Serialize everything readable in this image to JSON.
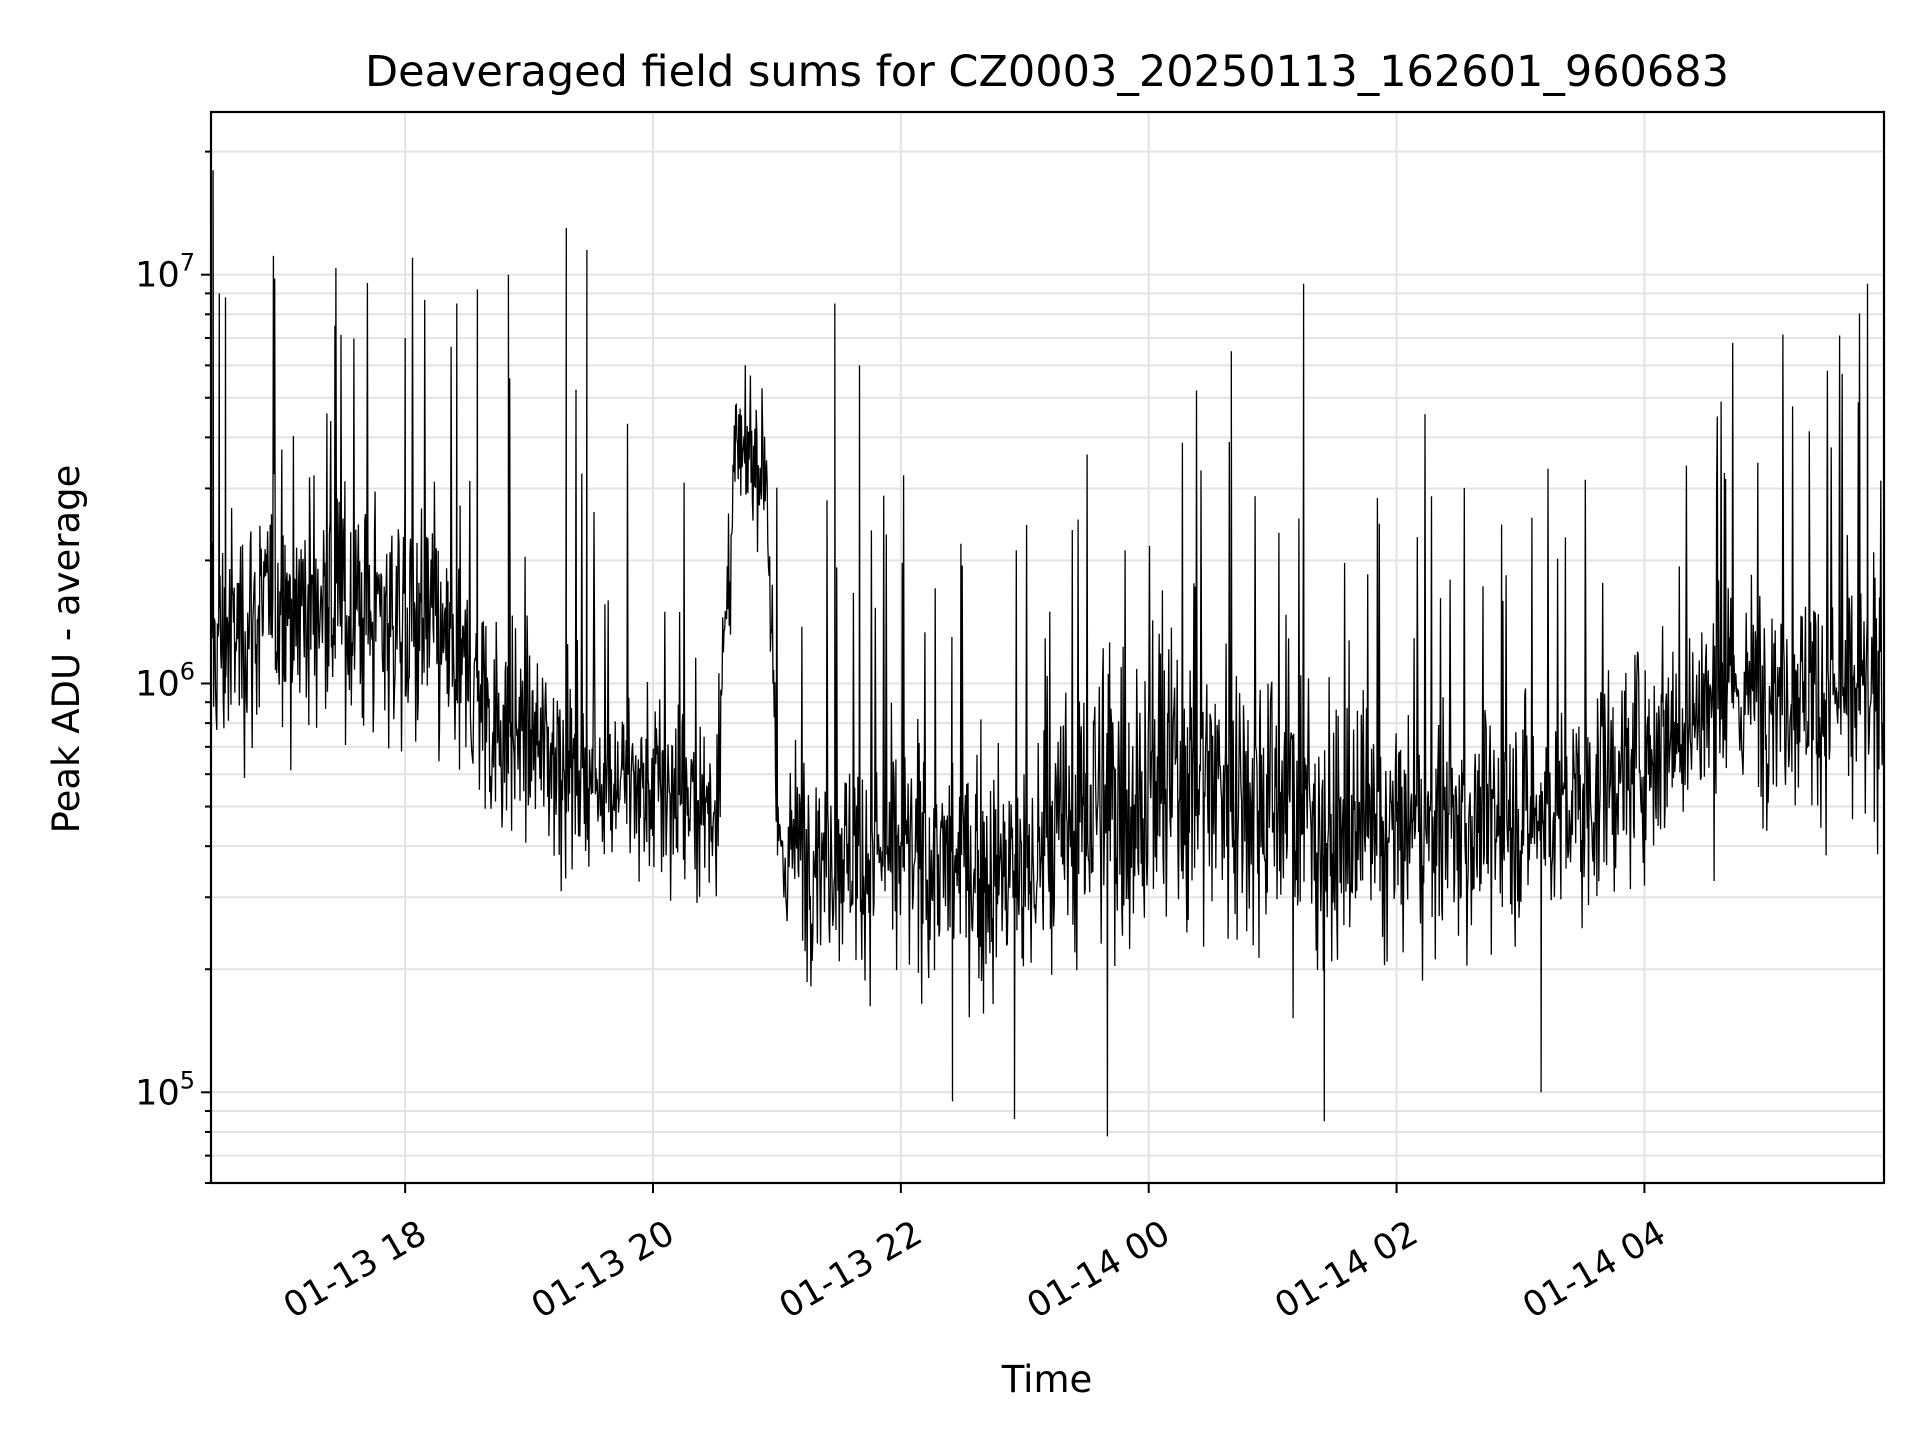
{
  "chart_data": {
    "type": "line",
    "title": "Deaveraged field sums for CZ0003_20250113_162601_960683",
    "xlabel": "Time",
    "ylabel": "Peak ADU - average",
    "x_start": "2025-01-13 16:26",
    "x_end": "2025-01-14 05:56",
    "xlim": [
      "2025-01-13 16:26",
      "2025-01-14 05:56"
    ],
    "ylim": [
      60000,
      25000000
    ],
    "yscale": "log",
    "grid": true,
    "x_ticks": [
      {
        "time": "2025-01-13 18:00",
        "label": "01-13 18"
      },
      {
        "time": "2025-01-13 20:00",
        "label": "01-13 20"
      },
      {
        "time": "2025-01-13 22:00",
        "label": "01-13 22"
      },
      {
        "time": "2025-01-14 00:00",
        "label": "01-14 00"
      },
      {
        "time": "2025-01-14 02:00",
        "label": "01-14 02"
      },
      {
        "time": "2025-01-14 04:00",
        "label": "01-14 04"
      }
    ],
    "y_ticks": [
      {
        "value": 100000,
        "base": "10",
        "exp": "5"
      },
      {
        "value": 1000000,
        "base": "10",
        "exp": "6"
      },
      {
        "value": 10000000,
        "base": "10",
        "exp": "7"
      }
    ],
    "series": [
      {
        "color": "#000000",
        "level_profile": [
          [
            "2025-01-13 16:26",
            1200000,
            2.0
          ],
          [
            "2025-01-13 17:00",
            1600000,
            2.0
          ],
          [
            "2025-01-13 17:40",
            1500000,
            2.1
          ],
          [
            "2025-01-13 18:10",
            1400000,
            2.0
          ],
          [
            "2025-01-13 18:45",
            800000,
            1.9
          ],
          [
            "2025-01-13 19:30",
            600000,
            1.8
          ],
          [
            "2025-01-13 20:30",
            500000,
            1.8
          ],
          [
            "2025-01-13 20:40",
            3500000,
            1.5
          ],
          [
            "2025-01-13 20:55",
            3500000,
            1.5
          ],
          [
            "2025-01-13 21:00",
            400000,
            1.8
          ],
          [
            "2025-01-13 22:00",
            380000,
            1.9
          ],
          [
            "2025-01-13 23:00",
            330000,
            2.0
          ],
          [
            "2025-01-13 23:30",
            500000,
            2.4
          ],
          [
            "2025-01-14 00:00",
            550000,
            2.5
          ],
          [
            "2025-01-14 00:30",
            600000,
            2.4
          ],
          [
            "2025-01-14 01:15",
            500000,
            2.3
          ],
          [
            "2025-01-14 01:30",
            400000,
            2.0
          ],
          [
            "2025-01-14 02:30",
            450000,
            1.9
          ],
          [
            "2025-01-14 03:30",
            500000,
            1.9
          ],
          [
            "2025-01-14 04:15",
            800000,
            1.9
          ],
          [
            "2025-01-14 05:00",
            1000000,
            1.9
          ],
          [
            "2025-01-14 05:56",
            900000,
            2.0
          ]
        ],
        "points": [
          [
            "2025-01-13 16:27",
            18000000
          ],
          [
            "2025-01-13 16:30",
            9000000
          ],
          [
            "2025-01-13 16:33",
            8800000
          ],
          [
            "2025-01-13 17:26",
            7500000
          ],
          [
            "2025-01-13 18:00",
            7000000
          ],
          [
            "2025-01-13 18:25",
            8500000
          ],
          [
            "2025-01-13 18:35",
            9200000
          ],
          [
            "2025-01-13 18:50",
            10000000
          ],
          [
            "2025-01-13 19:18",
            13000000
          ],
          [
            "2025-01-13 19:28",
            11500000
          ],
          [
            "2025-01-13 21:28",
            8500000
          ],
          [
            "2025-01-13 21:40",
            6000000
          ],
          [
            "2025-01-14 00:40",
            6500000
          ],
          [
            "2025-01-14 01:15",
            9500000
          ],
          [
            "2025-01-14 05:48",
            9500000
          ],
          [
            "2025-01-13 23:40",
            78000
          ],
          [
            "2025-01-13 22:55",
            86000
          ],
          [
            "2025-01-14 01:25",
            85000
          ],
          [
            "2025-01-13 22:25",
            95000
          ],
          [
            "2025-01-14 03:10",
            100000
          ]
        ]
      }
    ]
  }
}
